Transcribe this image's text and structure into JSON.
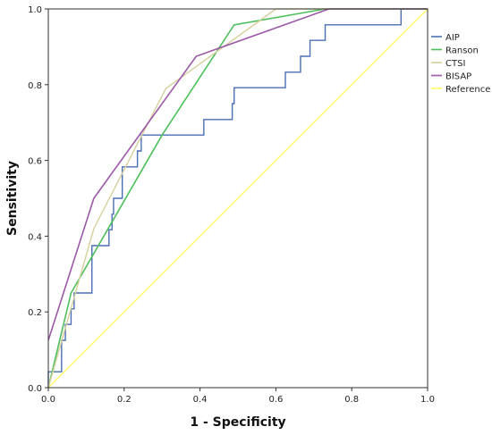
{
  "chart_data": {
    "type": "line",
    "title": "",
    "xlabel": "1 - Specificity",
    "ylabel": "Sensitivity",
    "xlim": [
      0,
      1
    ],
    "ylim": [
      0,
      1
    ],
    "x_ticks": [
      "0.0",
      "0.2",
      "0.4",
      "0.6",
      "0.8",
      "1.0"
    ],
    "y_ticks": [
      "0.0",
      "0.2",
      "0.4",
      "0.6",
      "0.8",
      "1.0"
    ],
    "grid": false,
    "legend_position": "right",
    "series": [
      {
        "name": "AIP",
        "color": "#4a6fb5",
        "step": true,
        "points": [
          [
            0.0,
            0.0
          ],
          [
            0.0,
            0.042
          ],
          [
            0.035,
            0.042
          ],
          [
            0.035,
            0.125
          ],
          [
            0.045,
            0.125
          ],
          [
            0.045,
            0.167
          ],
          [
            0.06,
            0.167
          ],
          [
            0.06,
            0.208
          ],
          [
            0.068,
            0.208
          ],
          [
            0.068,
            0.25
          ],
          [
            0.115,
            0.25
          ],
          [
            0.115,
            0.375
          ],
          [
            0.16,
            0.375
          ],
          [
            0.16,
            0.417
          ],
          [
            0.168,
            0.417
          ],
          [
            0.168,
            0.458
          ],
          [
            0.172,
            0.458
          ],
          [
            0.172,
            0.5
          ],
          [
            0.195,
            0.5
          ],
          [
            0.195,
            0.583
          ],
          [
            0.235,
            0.583
          ],
          [
            0.235,
            0.625
          ],
          [
            0.245,
            0.625
          ],
          [
            0.245,
            0.667
          ],
          [
            0.41,
            0.667
          ],
          [
            0.41,
            0.708
          ],
          [
            0.485,
            0.708
          ],
          [
            0.485,
            0.75
          ],
          [
            0.49,
            0.75
          ],
          [
            0.49,
            0.792
          ],
          [
            0.625,
            0.792
          ],
          [
            0.625,
            0.833
          ],
          [
            0.665,
            0.833
          ],
          [
            0.665,
            0.875
          ],
          [
            0.69,
            0.875
          ],
          [
            0.69,
            0.917
          ],
          [
            0.73,
            0.917
          ],
          [
            0.73,
            0.958
          ],
          [
            0.93,
            0.958
          ],
          [
            0.93,
            1.0
          ],
          [
            1.0,
            1.0
          ]
        ]
      },
      {
        "name": "Ranson",
        "color": "#4cbf5a",
        "step": false,
        "points": [
          [
            0.0,
            0.0
          ],
          [
            0.06,
            0.25
          ],
          [
            0.3,
            0.667
          ],
          [
            0.49,
            0.958
          ],
          [
            0.73,
            1.0
          ],
          [
            1.0,
            1.0
          ]
        ]
      },
      {
        "name": "CTSI",
        "color": "#d6cf9c",
        "step": false,
        "points": [
          [
            0.0,
            0.0
          ],
          [
            0.12,
            0.42
          ],
          [
            0.31,
            0.79
          ],
          [
            0.6,
            1.0
          ],
          [
            1.0,
            1.0
          ]
        ]
      },
      {
        "name": "BISAP",
        "color": "#9b59a8",
        "step": false,
        "points": [
          [
            0.0,
            0.125
          ],
          [
            0.12,
            0.5
          ],
          [
            0.39,
            0.875
          ],
          [
            0.74,
            1.0
          ],
          [
            1.0,
            1.0
          ]
        ]
      },
      {
        "name": "Reference",
        "color": "#ffff66",
        "step": false,
        "points": [
          [
            0.0,
            0.0
          ],
          [
            1.0,
            1.0
          ]
        ]
      }
    ]
  }
}
